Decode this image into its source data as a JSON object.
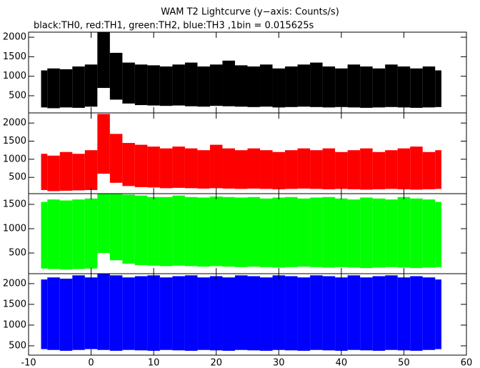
{
  "title": "WAM T2 Lightcurve (y−axis: Counts/s)",
  "subtitle": "black:TH0, red:TH1, green:TH2, blue:TH3 ,1bin = 0.015625s",
  "chart_data": [
    {
      "type": "band",
      "color": "#000000",
      "x": [
        -8,
        -6,
        -4,
        -2,
        0,
        2,
        4,
        6,
        8,
        10,
        12,
        14,
        16,
        18,
        20,
        22,
        24,
        26,
        28,
        30,
        32,
        34,
        36,
        38,
        40,
        42,
        44,
        46,
        48,
        50,
        52,
        54,
        56
      ],
      "high": [
        1150,
        1200,
        1180,
        1250,
        1300,
        2130,
        1600,
        1350,
        1300,
        1280,
        1250,
        1300,
        1350,
        1250,
        1300,
        1400,
        1280,
        1250,
        1300,
        1200,
        1250,
        1300,
        1350,
        1250,
        1200,
        1300,
        1250,
        1200,
        1300,
        1250,
        1200,
        1250,
        1150
      ],
      "low": [
        200,
        180,
        200,
        190,
        220,
        700,
        400,
        300,
        260,
        250,
        240,
        250,
        230,
        220,
        240,
        230,
        220,
        210,
        220,
        200,
        210,
        220,
        210,
        200,
        210,
        200,
        190,
        200,
        210,
        200,
        190,
        200,
        210
      ],
      "xlim": [
        -10,
        60
      ],
      "xticks": [
        -10,
        0,
        10,
        20,
        30,
        40,
        50,
        60
      ],
      "ylim": [
        60,
        2130
      ],
      "yticks": [
        500,
        1000,
        1500,
        2000
      ]
    },
    {
      "type": "band",
      "color": "#ff0000",
      "x": [
        -8,
        -6,
        -4,
        -2,
        0,
        2,
        4,
        6,
        8,
        10,
        12,
        14,
        16,
        18,
        20,
        22,
        24,
        26,
        28,
        30,
        32,
        34,
        36,
        38,
        40,
        42,
        44,
        46,
        48,
        50,
        52,
        54,
        56
      ],
      "high": [
        1150,
        1100,
        1200,
        1150,
        1250,
        2250,
        1700,
        1450,
        1400,
        1350,
        1300,
        1350,
        1300,
        1250,
        1400,
        1300,
        1250,
        1300,
        1250,
        1200,
        1250,
        1300,
        1250,
        1300,
        1200,
        1250,
        1300,
        1200,
        1250,
        1300,
        1350,
        1200,
        1250
      ],
      "low": [
        150,
        120,
        130,
        140,
        150,
        600,
        350,
        260,
        230,
        220,
        200,
        210,
        200,
        190,
        200,
        190,
        180,
        190,
        180,
        170,
        180,
        190,
        180,
        170,
        180,
        170,
        160,
        170,
        180,
        170,
        160,
        170,
        180
      ],
      "xlim": [
        -10,
        60
      ],
      "xticks": [
        -10,
        0,
        10,
        20,
        30,
        40,
        50,
        60
      ],
      "ylim": [
        50,
        2280
      ],
      "yticks": [
        500,
        1000,
        1500,
        2000
      ]
    },
    {
      "type": "band",
      "color": "#00ff00",
      "x": [
        -8,
        -6,
        -4,
        -2,
        0,
        2,
        4,
        6,
        8,
        10,
        12,
        14,
        16,
        18,
        20,
        22,
        24,
        26,
        28,
        30,
        32,
        34,
        36,
        38,
        40,
        42,
        44,
        46,
        48,
        50,
        52,
        54,
        56
      ],
      "high": [
        1550,
        1600,
        1580,
        1600,
        1620,
        1720,
        1720,
        1700,
        1680,
        1650,
        1650,
        1680,
        1650,
        1640,
        1660,
        1650,
        1640,
        1650,
        1620,
        1640,
        1650,
        1620,
        1640,
        1650,
        1620,
        1600,
        1640,
        1620,
        1600,
        1650,
        1620,
        1600,
        1550
      ],
      "low": [
        180,
        170,
        160,
        170,
        180,
        500,
        350,
        280,
        250,
        240,
        230,
        240,
        230,
        220,
        230,
        220,
        210,
        220,
        210,
        200,
        210,
        220,
        210,
        200,
        210,
        200,
        190,
        200,
        210,
        200,
        190,
        200,
        210
      ],
      "xlim": [
        -10,
        60
      ],
      "xticks": [
        -10,
        0,
        10,
        20,
        30,
        40,
        50,
        60
      ],
      "ylim": [
        75,
        1720
      ],
      "yticks": [
        500,
        1000,
        1500
      ]
    },
    {
      "type": "band",
      "color": "#0000ff",
      "x": [
        -8,
        -6,
        -4,
        -2,
        0,
        2,
        4,
        6,
        8,
        10,
        12,
        14,
        16,
        18,
        20,
        22,
        24,
        26,
        28,
        30,
        32,
        34,
        36,
        38,
        40,
        42,
        44,
        46,
        48,
        50,
        52,
        54,
        56
      ],
      "high": [
        2100,
        2150,
        2120,
        2200,
        2150,
        2240,
        2200,
        2150,
        2180,
        2200,
        2150,
        2180,
        2200,
        2150,
        2180,
        2150,
        2200,
        2180,
        2150,
        2200,
        2180,
        2150,
        2200,
        2180,
        2150,
        2200,
        2150,
        2180,
        2200,
        2150,
        2180,
        2150,
        2100
      ],
      "low": [
        420,
        400,
        380,
        400,
        420,
        400,
        380,
        400,
        390,
        380,
        400,
        390,
        380,
        400,
        390,
        380,
        400,
        390,
        380,
        400,
        390,
        380,
        400,
        390,
        380,
        400,
        390,
        380,
        400,
        390,
        380,
        400,
        420
      ],
      "xlim": [
        -10,
        60
      ],
      "xticks": [
        -10,
        0,
        10,
        20,
        30,
        40,
        50,
        60
      ],
      "ylim": [
        275,
        2240
      ],
      "yticks": [
        500,
        1000,
        1500,
        2000
      ]
    }
  ]
}
